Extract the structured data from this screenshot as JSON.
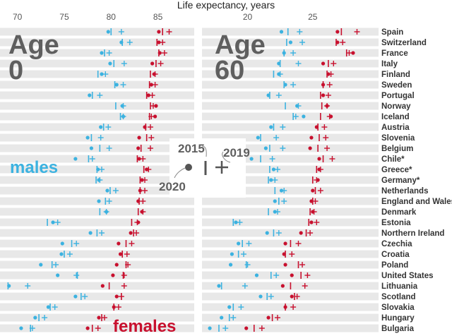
{
  "chart_data": {
    "type": "scatter",
    "title": "Life expectancy, years",
    "colors": {
      "males": "#3bb2e0",
      "females": "#c8102e",
      "legend": "#555555",
      "band": "#e8e8e8"
    },
    "legend": {
      "year_2015": "2015",
      "year_2019": "2019",
      "year_2020": "2020"
    },
    "series_labels": {
      "males": "males",
      "females": "females"
    },
    "countries": [
      "Spain",
      "Switzerland",
      "France",
      "Italy",
      "Finland",
      "Sweden",
      "Portugal",
      "Norway",
      "Iceland",
      "Austria",
      "Slovenia",
      "Belgium",
      "Chile*",
      "Greece*",
      "Germany*",
      "Netherlands",
      "England and Wales",
      "Denmark",
      "Estonia",
      "Northern Ireland",
      "Czechia",
      "Croatia",
      "Poland",
      "United States",
      "Lithuania",
      "Scotland",
      "Slovakia",
      "Hungary",
      "Bulgaria"
    ],
    "panels": [
      {
        "label_line1": "Age",
        "label_line2": "0",
        "x_ticks": [
          70,
          75,
          80,
          85
        ],
        "xlim": [
          69.5,
          88.5
        ],
        "males": {
          "2015": [
            80.0,
            81.2,
            79.3,
            80.3,
            78.6,
            80.4,
            78.0,
            80.5,
            81.0,
            79.2,
            77.9,
            78.8,
            77.6,
            78.5,
            78.4,
            79.9,
            79.4,
            78.8,
            73.2,
            78.5,
            75.8,
            75.0,
            73.7,
            76.4,
            69.0,
            76.8,
            73.5,
            72.3,
            71.4
          ],
          "2019": [
            81.1,
            82.0,
            79.8,
            81.4,
            79.4,
            81.3,
            78.8,
            81.3,
            81.3,
            79.7,
            78.9,
            79.8,
            78.0,
            79.0,
            78.8,
            80.5,
            79.8,
            79.5,
            74.3,
            79.0,
            76.3,
            75.6,
            74.1,
            76.3,
            71.1,
            77.2,
            74.0,
            72.9,
            71.6
          ],
          "2020": [
            79.7,
            81.1,
            79.0,
            79.9,
            79.0,
            80.6,
            77.7,
            81.2,
            81.3,
            78.9,
            77.5,
            77.9,
            76.2,
            78.6,
            78.7,
            79.6,
            78.7,
            79.5,
            73.8,
            77.8,
            74.8,
            74.7,
            72.5,
            74.3,
            69.1,
            76.2,
            73.3,
            71.9,
            70.4
          ]
        },
        "females": {
          "2015": [
            85.5,
            84.9,
            85.1,
            84.8,
            84.2,
            84.1,
            83.8,
            84.2,
            84.1,
            83.7,
            83.8,
            83.2,
            82.8,
            83.5,
            83.1,
            83.1,
            83.0,
            82.9,
            82.2,
            82.4,
            81.6,
            81.2,
            81.6,
            81.3,
            79.8,
            81.1,
            80.3,
            79.0,
            78.0
          ],
          "2019": [
            86.2,
            85.5,
            85.7,
            85.3,
            84.7,
            84.7,
            84.4,
            84.5,
            84.3,
            84.2,
            84.3,
            84.2,
            83.4,
            84.0,
            83.6,
            83.6,
            83.4,
            83.4,
            82.8,
            82.7,
            82.2,
            81.7,
            81.8,
            81.4,
            81.4,
            81.1,
            80.8,
            79.3,
            78.6
          ],
          "2020": [
            85.1,
            85.1,
            85.2,
            84.4,
            84.6,
            84.3,
            84.0,
            84.8,
            84.7,
            83.6,
            83.0,
            82.9,
            83.0,
            83.8,
            83.3,
            83.1,
            82.9,
            83.3,
            82.9,
            82.1,
            80.8,
            81.0,
            80.6,
            80.2,
            79.1,
            80.6,
            80.3,
            78.7,
            77.5
          ]
        }
      },
      {
        "label_line1": "Age",
        "label_line2": "60",
        "x_ticks": [
          20,
          25
        ],
        "xlim": [
          16.5,
          30.0
        ],
        "males": {
          "2015": [
            23.1,
            23.0,
            22.8,
            22.5,
            22.0,
            22.8,
            21.7,
            22.9,
            23.5,
            22.0,
            21.0,
            21.7,
            21.0,
            21.7,
            21.6,
            22.1,
            22.4,
            21.6,
            18.9,
            22.0,
            19.6,
            19.3,
            19.9,
            21.8,
            18.0,
            21.5,
            18.9,
            18.6,
            17.8
          ],
          "2019": [
            24.0,
            24.2,
            23.5,
            23.9,
            22.5,
            23.5,
            22.4,
            23.9,
            23.7,
            22.7,
            22.2,
            22.7,
            21.9,
            22.3,
            22.1,
            22.8,
            22.8,
            22.3,
            19.4,
            22.4,
            20.1,
            19.7,
            20.0,
            22.2,
            19.8,
            21.8,
            19.5,
            18.9,
            18.3
          ],
          "2020": [
            22.6,
            23.3,
            22.8,
            22.4,
            22.4,
            22.9,
            21.6,
            23.8,
            24.3,
            21.8,
            20.8,
            21.4,
            20.3,
            22.0,
            21.8,
            22.6,
            22.1,
            22.1,
            19.1,
            21.5,
            19.3,
            18.8,
            18.7,
            20.7,
            17.8,
            21.0,
            18.6,
            18.0,
            17.1
          ]
        },
        "females": {
          "2015": [
            27.2,
            26.8,
            27.6,
            26.2,
            26.1,
            25.8,
            25.6,
            25.7,
            25.6,
            25.4,
            25.5,
            25.4,
            25.8,
            25.3,
            25.0,
            25.2,
            25.0,
            24.8,
            24.7,
            24.5,
            23.3,
            22.9,
            23.9,
            24.1,
            23.3,
            23.6,
            22.9,
            21.9,
            20.5
          ],
          "2019": [
            28.4,
            27.3,
            27.8,
            26.6,
            26.4,
            26.3,
            26.2,
            26.1,
            26.3,
            25.9,
            26.0,
            26.1,
            26.5,
            25.6,
            25.3,
            25.6,
            25.2,
            25.1,
            25.3,
            24.8,
            23.9,
            23.4,
            24.2,
            24.6,
            24.4,
            23.8,
            23.5,
            22.3,
            21.1
          ],
          "2020": [
            26.9,
            26.9,
            28.1,
            25.8,
            26.2,
            25.8,
            25.8,
            26.1,
            26.4,
            25.3,
            24.9,
            24.8,
            25.5,
            25.5,
            25.4,
            25.0,
            24.9,
            25.0,
            24.9,
            24.1,
            22.9,
            22.8,
            22.9,
            23.4,
            22.7,
            23.4,
            22.9,
            21.6,
            19.9
          ]
        }
      }
    ]
  }
}
